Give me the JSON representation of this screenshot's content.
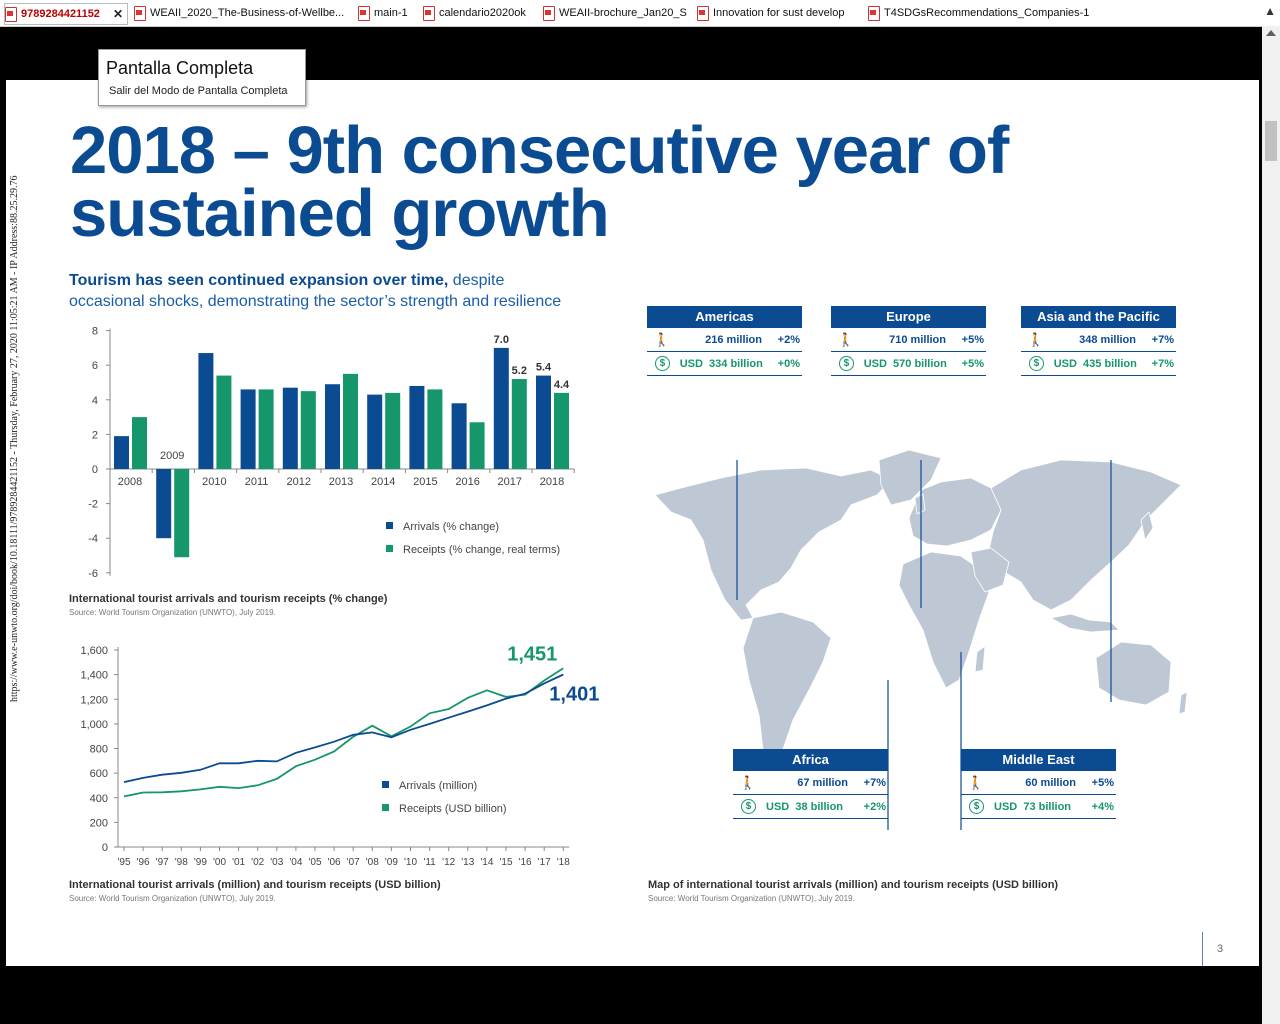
{
  "tabs": [
    {
      "label": "9789284421152",
      "active": true
    },
    {
      "label": "WEAII_2020_The-Business-of-Wellbe...",
      "active": false
    },
    {
      "label": "main-1",
      "active": false
    },
    {
      "label": "calendario2020ok",
      "active": false
    },
    {
      "label": "WEAII-brochure_Jan20_S",
      "active": false
    },
    {
      "label": "Innovation for sust develop",
      "active": false
    },
    {
      "label": "T4SDGsRecommendations_Companies-1",
      "active": false
    }
  ],
  "fullscreen_tip": {
    "title": "Pantalla Completa",
    "subtitle": "Salir del Modo de Pantalla Completa"
  },
  "document": {
    "title_line1": "2018 – 9th consecutive year of",
    "title_line2": "sustained growth",
    "intro_bold": "Tourism has seen continued expansion over time,",
    "intro_rest": " despite",
    "intro_line2": "occasional shocks, demonstrating the sector’s strength and resilience",
    "side_text": "https://www.e-unwto.org/doi/book/10.18111/9789284421152 - Thursday, February 27, 2020 11:05:21 AM - IP Address:88.25.29.76",
    "page_number": "3"
  },
  "chart1_caption": "International tourist arrivals and tourism receipts (% change)",
  "chart1_source": "Source: World Tourism Organization (UNWTO), July 2019.",
  "chart2_caption": "International tourist arrivals (million) and tourism receipts (USD billion)",
  "chart2_source": "Source: World Tourism Organization (UNWTO), July 2019.",
  "map_caption": "Map of international tourist arrivals (million) and tourism receipts (USD billion)",
  "map_source": "Source: World Tourism Organization (UNWTO), July 2019.",
  "colors": {
    "arrivals": "#0b4b92",
    "receipts": "#15966b",
    "map": "#bdc8d4"
  },
  "chart_data": [
    {
      "type": "bar",
      "categories": [
        "2008",
        "2009",
        "2010",
        "2011",
        "2012",
        "2013",
        "2014",
        "2015",
        "2016",
        "2017",
        "2018"
      ],
      "series": [
        {
          "name": "Arrivals (% change)",
          "values": [
            1.9,
            -4.0,
            6.7,
            4.6,
            4.7,
            4.9,
            4.3,
            4.8,
            3.8,
            7.0,
            5.4
          ]
        },
        {
          "name": "Receipts (% change, real terms)",
          "values": [
            3.0,
            -5.1,
            5.4,
            4.6,
            4.5,
            5.5,
            4.4,
            4.6,
            2.7,
            5.2,
            4.4
          ]
        }
      ],
      "yticks": [
        "8",
        "6",
        "4",
        "2",
        "0",
        "-2",
        "-4",
        "-6"
      ],
      "ylim": [
        -6,
        8
      ],
      "labels": {
        "2009": "2009",
        "a2017": "7.0",
        "r2017": "5.2",
        "a2018": "5.4",
        "r2018": "4.4"
      },
      "legend": "bottom-right"
    },
    {
      "type": "line",
      "x": [
        "'95",
        "'96",
        "'97",
        "'98",
        "'99",
        "'00",
        "'01",
        "'02",
        "'03",
        "'04",
        "'05",
        "'06",
        "'07",
        "'08",
        "'09",
        "'10",
        "'11",
        "'12",
        "'13",
        "'14",
        "'15",
        "'16",
        "'17",
        "'18"
      ],
      "series": [
        {
          "name": "Arrivals (million)",
          "values": [
            527,
            561,
            587,
            603,
            627,
            680,
            680,
            700,
            695,
            765,
            809,
            855,
            911,
            931,
            891,
            952,
            1000,
            1050,
            1100,
            1150,
            1205,
            1245,
            1329,
            1401
          ]
        },
        {
          "name": "Receipts (USD billion)",
          "values": [
            411,
            443,
            444,
            452,
            468,
            489,
            478,
            501,
            553,
            656,
            709,
            776,
            895,
            985,
            899,
            979,
            1086,
            1121,
            1212,
            1273,
            1219,
            1238,
            1352,
            1451
          ]
        }
      ],
      "yticks": [
        "1,600",
        "1,400",
        "1,200",
        "1,000",
        "800",
        "600",
        "400",
        "200",
        "0"
      ],
      "ylim": [
        0,
        1600
      ],
      "end_labels": {
        "receipts": "1,451",
        "arrivals": "1,401"
      },
      "legend": "bottom-right"
    }
  ],
  "regions": [
    {
      "name": "Americas",
      "arrivals": "216 million",
      "arrivals_change": "+2%",
      "receipts": "USD  334 billion",
      "receipts_change": "+0%"
    },
    {
      "name": "Europe",
      "arrivals": "710 million",
      "arrivals_change": "+5%",
      "receipts": "USD  570 billion",
      "receipts_change": "+5%"
    },
    {
      "name": "Asia and the Pacific",
      "arrivals": "348 million",
      "arrivals_change": "+7%",
      "receipts": "USD  435 billion",
      "receipts_change": "+7%"
    },
    {
      "name": "Africa",
      "arrivals": "67 million",
      "arrivals_change": "+7%",
      "receipts": "USD  38 billion",
      "receipts_change": "+2%"
    },
    {
      "name": "Middle East",
      "arrivals": "60 million",
      "arrivals_change": "+5%",
      "receipts": "USD  73 billion",
      "receipts_change": "+4%"
    }
  ],
  "icons": {
    "arrivals": "traveler-icon",
    "receipts": "dollar-coin-icon"
  }
}
